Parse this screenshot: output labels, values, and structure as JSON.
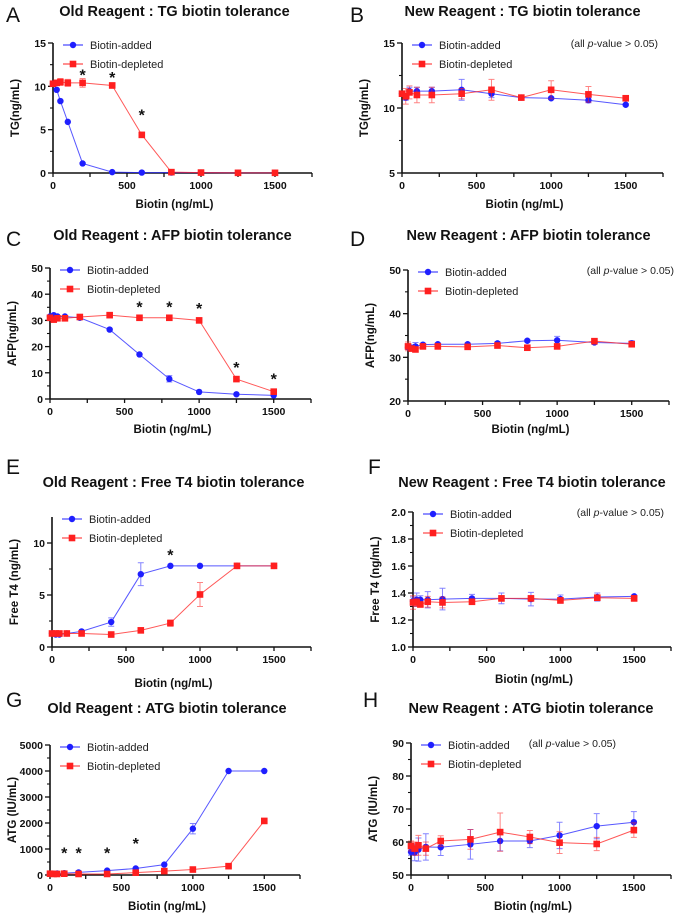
{
  "colors": {
    "added": "#1f1fff",
    "depleted": "#ff1f1f",
    "axis": "#111111"
  },
  "chart_data": [
    {
      "letter": "A",
      "type": "line",
      "title": "Old Reagent : TG biotin tolerance",
      "xlabel": "Biotin (ng/mL)",
      "ylabel": "TG(ng/mL)",
      "xlim": [
        0,
        1750
      ],
      "xticks": [
        0,
        500,
        1000,
        1500
      ],
      "ylim": [
        0,
        15
      ],
      "yticks": [
        0,
        5,
        10,
        15
      ],
      "x": [
        0,
        25,
        50,
        100,
        200,
        400,
        600,
        800,
        1000,
        1250,
        1500
      ],
      "series": [
        {
          "name": "Biotin-added",
          "marker": "circle",
          "values": [
            10.3,
            9.6,
            8.3,
            5.9,
            1.1,
            0.1,
            0.05,
            0.05,
            0.05,
            0.02,
            0.02
          ]
        },
        {
          "name": "Biotin-depleted",
          "marker": "square",
          "values": [
            10.3,
            10.4,
            10.5,
            10.4,
            10.4,
            10.1,
            4.4,
            0.1,
            0.05,
            0.02,
            0.02
          ],
          "err": [
            0,
            0.3,
            0.4,
            0.4,
            0.5,
            0.3,
            0.2,
            0,
            0,
            0,
            0
          ]
        }
      ],
      "annotations": [
        {
          "text": "*",
          "x": 200,
          "y": 11.6
        },
        {
          "text": "*",
          "x": 400,
          "y": 11.3
        },
        {
          "text": "*",
          "x": 600,
          "y": 7.0
        }
      ],
      "note": ""
    },
    {
      "letter": "B",
      "type": "line",
      "title": "New Reagent : TG biotin tolerance",
      "xlabel": "Biotin (ng/mL)",
      "ylabel": "TG(ng/mL)",
      "xlim": [
        0,
        1750
      ],
      "xticks": [
        0,
        500,
        1000,
        1500
      ],
      "ylim": [
        5,
        15
      ],
      "yticks": [
        5,
        10,
        15
      ],
      "x": [
        0,
        25,
        50,
        100,
        200,
        400,
        600,
        800,
        1000,
        1250,
        1500
      ],
      "series": [
        {
          "name": "Biotin-added",
          "marker": "circle",
          "values": [
            11.1,
            10.8,
            11.3,
            11.3,
            11.3,
            11.4,
            11.1,
            10.8,
            10.75,
            10.6,
            10.25
          ],
          "err": [
            0.2,
            0.2,
            0.3,
            0.3,
            0.3,
            0.8,
            0.3,
            0.1,
            0.1,
            0.2,
            0.1
          ]
        },
        {
          "name": "Biotin-depleted",
          "marker": "square",
          "values": [
            11.1,
            10.9,
            11.2,
            11.0,
            11.0,
            11.1,
            11.4,
            10.8,
            11.4,
            11.05,
            10.75
          ],
          "err": [
            0.2,
            0.6,
            0.5,
            0.6,
            0.6,
            0.4,
            0.8,
            0.1,
            0.7,
            0.6,
            0.1
          ]
        }
      ],
      "annotations": [],
      "note": "(all p-value > 0.05)"
    },
    {
      "letter": "C",
      "type": "line",
      "title": "Old Reagent : AFP biotin tolerance",
      "xlabel": "Biotin (ng/mL)",
      "ylabel": "AFP(ng/mL)",
      "xlim": [
        0,
        1750
      ],
      "xticks": [
        0,
        500,
        1000,
        1500
      ],
      "ylim": [
        0,
        50
      ],
      "yticks": [
        0,
        10,
        20,
        30,
        40,
        50
      ],
      "x": [
        0,
        25,
        50,
        100,
        200,
        400,
        600,
        800,
        1000,
        1250,
        1500
      ],
      "series": [
        {
          "name": "Biotin-added",
          "marker": "circle",
          "values": [
            31.5,
            32,
            31.5,
            31.5,
            31,
            26.5,
            17,
            7.7,
            2.7,
            1.8,
            1.4
          ],
          "err": [
            0,
            0,
            0,
            0,
            0,
            0,
            0,
            1.2,
            0,
            0,
            0
          ]
        },
        {
          "name": "Biotin-depleted",
          "marker": "square",
          "values": [
            31,
            30.3,
            30.8,
            30.8,
            31.3,
            32,
            31,
            31,
            30,
            7.6,
            2.8
          ]
        }
      ],
      "annotations": [
        {
          "text": "*",
          "x": 600,
          "y": 36
        },
        {
          "text": "*",
          "x": 800,
          "y": 36
        },
        {
          "text": "*",
          "x": 1000,
          "y": 35.5
        },
        {
          "text": "*",
          "x": 1250,
          "y": 13
        },
        {
          "text": "*",
          "x": 1500,
          "y": 8.5
        }
      ],
      "note": ""
    },
    {
      "letter": "D",
      "type": "line",
      "title": "New Reagent : AFP biotin tolerance",
      "xlabel": "Biotin (ng/mL)",
      "ylabel": "AFP(ng/mL)",
      "xlim": [
        0,
        1750
      ],
      "xticks": [
        0,
        500,
        1000,
        1500
      ],
      "ylim": [
        20,
        50
      ],
      "yticks": [
        20,
        30,
        40,
        50
      ],
      "x": [
        0,
        25,
        50,
        100,
        200,
        400,
        600,
        800,
        1000,
        1250,
        1500
      ],
      "series": [
        {
          "name": "Biotin-added",
          "marker": "circle",
          "values": [
            32.3,
            32.2,
            32.5,
            32.9,
            33,
            33,
            33.2,
            33.8,
            33.9,
            33.4,
            33.2
          ],
          "err": [
            0.5,
            0.5,
            0.9,
            0.3,
            0.3,
            0.3,
            0.4,
            0.3,
            0.9,
            0.4,
            0.6
          ]
        },
        {
          "name": "Biotin-depleted",
          "marker": "square",
          "values": [
            32.5,
            32,
            31.8,
            32.5,
            32.5,
            32.4,
            32.7,
            32.2,
            32.5,
            33.7,
            33
          ],
          "err": [
            1.0,
            0.5,
            0.5,
            0.3,
            0.3,
            0.3,
            0.4,
            0.3,
            0.3,
            0.5,
            0.5
          ]
        }
      ],
      "annotations": [],
      "note": "(all p-value > 0.05)"
    },
    {
      "letter": "E",
      "type": "line",
      "title": "Old Reagent : Free T4 biotin tolerance",
      "xlabel": "Biotin (ng/mL)",
      "ylabel": "Free T4 (ng/mL)",
      "xlim": [
        0,
        1750
      ],
      "xticks": [
        0,
        500,
        1000,
        1500
      ],
      "ylim": [
        0,
        12.5
      ],
      "yticks": [
        0,
        5,
        10
      ],
      "x": [
        0,
        25,
        50,
        100,
        200,
        400,
        600,
        800,
        1000,
        1250,
        1500
      ],
      "series": [
        {
          "name": "Biotin-added",
          "marker": "circle",
          "values": [
            1.3,
            1.2,
            1.2,
            1.3,
            1.5,
            2.4,
            7.0,
            7.8,
            7.8,
            7.8,
            7.8
          ],
          "err": [
            0,
            0,
            0,
            0,
            0,
            0.4,
            1.1,
            0,
            0,
            0,
            0
          ]
        },
        {
          "name": "Biotin-depleted",
          "marker": "square",
          "values": [
            1.3,
            1.3,
            1.3,
            1.3,
            1.3,
            1.2,
            1.6,
            2.3,
            5.05,
            7.8,
            7.8
          ],
          "err": [
            0,
            0,
            0,
            0,
            0,
            0,
            0,
            0.3,
            1.15,
            0,
            0
          ]
        }
      ],
      "annotations": [
        {
          "text": "*",
          "x": 800,
          "y": 9.1
        }
      ],
      "note": ""
    },
    {
      "letter": "F",
      "type": "line",
      "title": "New Reagent : Free T4 biotin tolerance",
      "xlabel": "Biotin (ng/mL)",
      "ylabel": "Free T4 (ng/mL)",
      "xlim": [
        0,
        1750
      ],
      "xticks": [
        0,
        500,
        1000,
        1500
      ],
      "ylim": [
        1.0,
        2.0
      ],
      "yticks": [
        "1.0",
        "1.2",
        "1.4",
        "1.6",
        "1.8",
        "2.0"
      ],
      "x": [
        0,
        25,
        50,
        100,
        200,
        400,
        600,
        800,
        1000,
        1250,
        1500
      ],
      "series": [
        {
          "name": "Biotin-added",
          "marker": "circle",
          "values": [
            1.34,
            1.35,
            1.35,
            1.35,
            1.355,
            1.36,
            1.36,
            1.355,
            1.355,
            1.37,
            1.375
          ],
          "err": [
            0.03,
            0.05,
            0.03,
            0.06,
            0.08,
            0.03,
            0.04,
            0.05,
            0.03,
            0.03,
            0.01
          ]
        },
        {
          "name": "Biotin-depleted",
          "marker": "square",
          "values": [
            1.33,
            1.33,
            1.315,
            1.335,
            1.33,
            1.335,
            1.36,
            1.36,
            1.345,
            1.365,
            1.36
          ],
          "err": [
            0.05,
            0.03,
            0.02,
            0.04,
            0.04,
            0.02,
            0.02,
            0.02,
            0.02,
            0.02,
            0.02
          ]
        }
      ],
      "annotations": [],
      "note": "(all p-value > 0.05)"
    },
    {
      "letter": "G",
      "type": "line",
      "title": "Old Reagent : ATG biotin tolerance",
      "xlabel": "Biotin (ng/mL)",
      "ylabel": "ATG (IU/mL)",
      "xlim": [
        0,
        1750
      ],
      "xticks": [
        0,
        500,
        1000,
        1500
      ],
      "ylim": [
        0,
        5000
      ],
      "yticks": [
        0,
        1000,
        2000,
        3000,
        4000,
        5000
      ],
      "x": [
        0,
        25,
        50,
        100,
        200,
        400,
        600,
        800,
        1000,
        1250,
        1500
      ],
      "series": [
        {
          "name": "Biotin-added",
          "marker": "circle",
          "values": [
            50,
            50,
            60,
            70,
            100,
            170,
            250,
            400,
            1780,
            4000,
            4000
          ],
          "err": [
            0,
            0,
            0,
            0,
            0,
            0,
            0,
            0,
            200,
            0,
            0
          ]
        },
        {
          "name": "Biotin-depleted",
          "marker": "square",
          "values": [
            50,
            40,
            40,
            50,
            40,
            40,
            90,
            150,
            210,
            340,
            2080
          ]
        }
      ],
      "annotations": [
        {
          "text": "*",
          "x": 100,
          "y": 950
        },
        {
          "text": "*",
          "x": 200,
          "y": 950
        },
        {
          "text": "*",
          "x": 400,
          "y": 950
        },
        {
          "text": "*",
          "x": 600,
          "y": 1300
        }
      ],
      "note": ""
    },
    {
      "letter": "H",
      "type": "line",
      "title": "New Reagent : ATG biotin tolerance",
      "xlabel": "Biotin (ng/mL)",
      "ylabel": "ATG (IU/mL)",
      "xlim": [
        0,
        1750
      ],
      "xticks": [
        0,
        500,
        1000,
        1500
      ],
      "ylim": [
        50,
        90
      ],
      "yticks": [
        50,
        60,
        70,
        80,
        90
      ],
      "x": [
        0,
        25,
        50,
        100,
        200,
        400,
        600,
        800,
        1000,
        1250,
        1500
      ],
      "series": [
        {
          "name": "Biotin-added",
          "marker": "circle",
          "values": [
            57,
            56.8,
            57.7,
            58.5,
            58.4,
            59.3,
            60.3,
            60.3,
            62,
            64.8,
            66
          ],
          "err": [
            1,
            2.5,
            3.5,
            4,
            2.5,
            4.5,
            3,
            2,
            4,
            3.8,
            3.2
          ]
        },
        {
          "name": "Biotin-depleted",
          "marker": "square",
          "values": [
            58.8,
            58,
            59,
            58,
            60.3,
            60.8,
            63,
            61.5,
            59.8,
            59.4,
            63.6
          ],
          "err": [
            1.5,
            2,
            3,
            2,
            1.6,
            3,
            5.8,
            2,
            3.3,
            2,
            2.2
          ]
        }
      ],
      "annotations": [],
      "note": "(all p-value > 0.05)"
    }
  ]
}
